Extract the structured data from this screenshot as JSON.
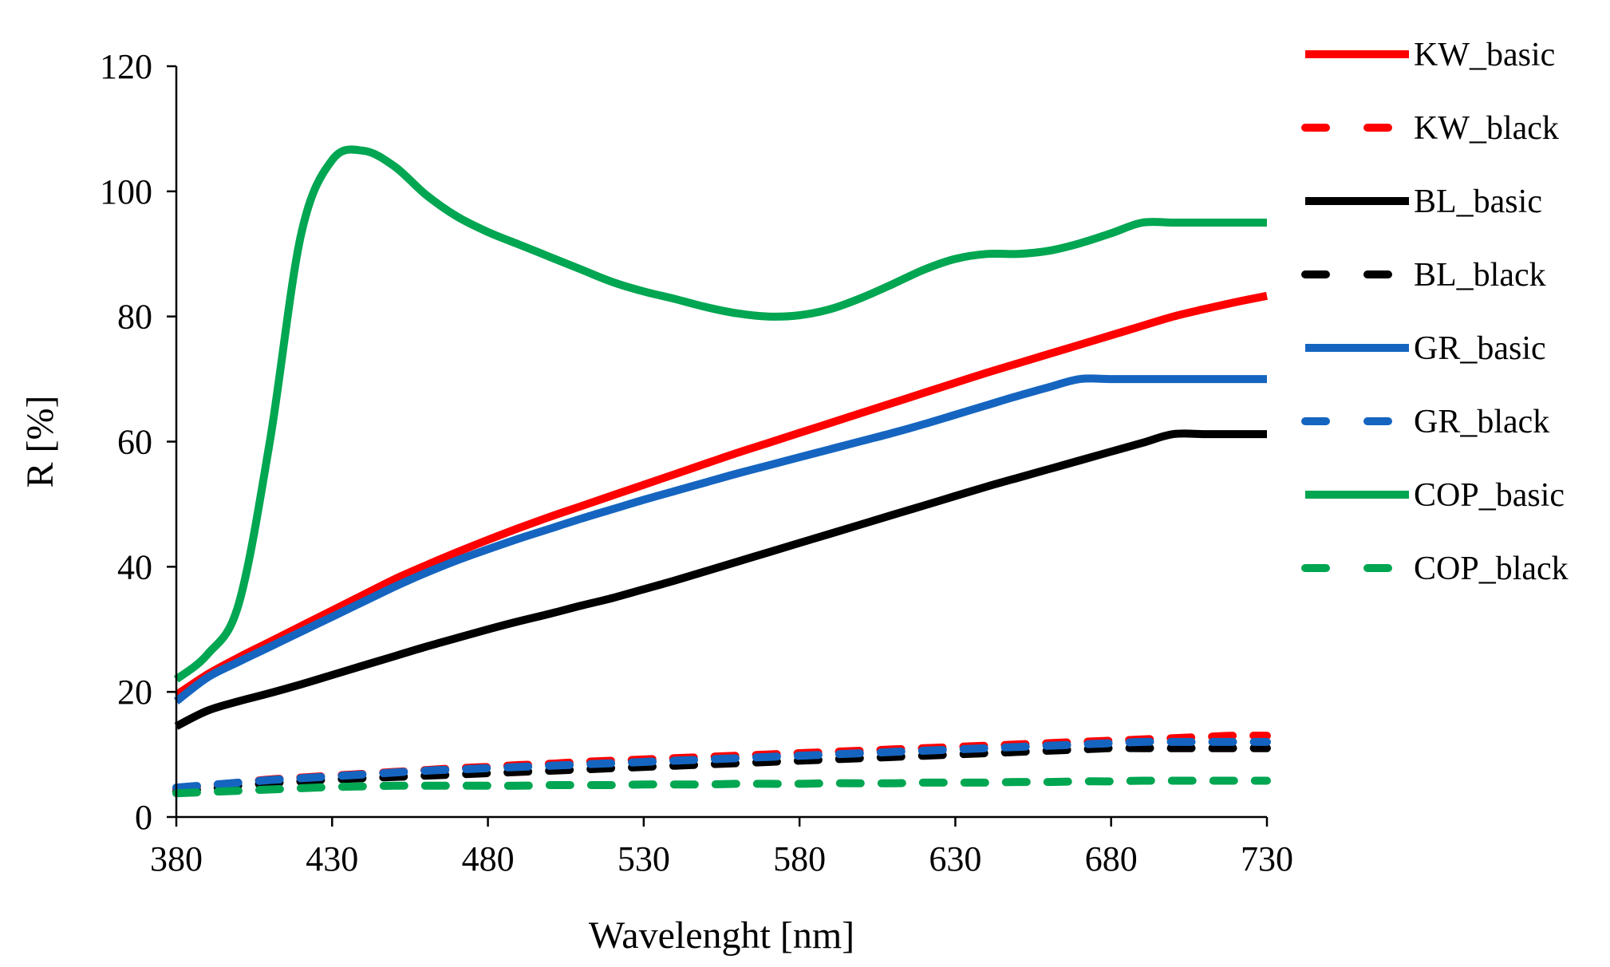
{
  "chart_data": {
    "type": "line",
    "xlabel": "Wavelenght [nm]",
    "ylabel": "R [%]",
    "xlim": [
      380,
      730
    ],
    "ylim": [
      0,
      120
    ],
    "x_ticks": [
      380,
      430,
      480,
      530,
      580,
      630,
      680,
      730
    ],
    "y_ticks": [
      0,
      20,
      40,
      60,
      80,
      100,
      120
    ],
    "grid": false,
    "legend_position": "right",
    "x": [
      380,
      390,
      400,
      410,
      420,
      430,
      440,
      450,
      460,
      470,
      480,
      490,
      500,
      510,
      520,
      530,
      540,
      550,
      560,
      570,
      580,
      590,
      600,
      610,
      620,
      630,
      640,
      650,
      660,
      670,
      680,
      690,
      700,
      710,
      720,
      730
    ],
    "series": [
      {
        "name": "KW_basic",
        "color": "#ff0000",
        "dash": "solid",
        "values": [
          19.5,
          22.8,
          25.5,
          28,
          30.5,
          33,
          35.5,
          38,
          40.2,
          42.3,
          44.3,
          46.2,
          48,
          49.7,
          51.4,
          53.1,
          54.8,
          56.5,
          58.2,
          59.8,
          61.4,
          63,
          64.6,
          66.2,
          67.8,
          69.4,
          71,
          72.5,
          74,
          75.5,
          77,
          78.5,
          80,
          81.2,
          82.3,
          83.3
        ]
      },
      {
        "name": "KW_black",
        "color": "#ff0000",
        "dash": "dashed",
        "values": [
          4.5,
          5,
          5.5,
          6,
          6.3,
          6.6,
          6.9,
          7.2,
          7.5,
          7.8,
          8,
          8.3,
          8.5,
          8.8,
          9,
          9.2,
          9.4,
          9.6,
          9.8,
          10,
          10.2,
          10.4,
          10.6,
          10.8,
          11,
          11.2,
          11.4,
          11.6,
          11.8,
          12,
          12.2,
          12.4,
          12.6,
          12.8,
          13,
          13
        ]
      },
      {
        "name": "BL_basic",
        "color": "#000000",
        "dash": "solid",
        "values": [
          14.5,
          17,
          18.5,
          19.8,
          21.2,
          22.7,
          24.2,
          25.7,
          27.2,
          28.6,
          30,
          31.3,
          32.5,
          33.8,
          35,
          36.4,
          37.8,
          39.3,
          40.8,
          42.3,
          43.8,
          45.3,
          46.8,
          48.3,
          49.8,
          51.3,
          52.8,
          54.2,
          55.6,
          57,
          58.4,
          59.8,
          61.2,
          61.2,
          61.2,
          61.2
        ]
      },
      {
        "name": "BL_black",
        "color": "#000000",
        "dash": "dashed",
        "values": [
          4,
          4.5,
          5,
          5.4,
          5.7,
          6,
          6.2,
          6.4,
          6.6,
          6.8,
          7,
          7.2,
          7.4,
          7.6,
          7.8,
          8,
          8.2,
          8.4,
          8.6,
          8.8,
          9,
          9.2,
          9.4,
          9.6,
          9.8,
          10,
          10.2,
          10.4,
          10.6,
          10.8,
          11,
          11,
          11,
          11,
          11,
          11
        ]
      },
      {
        "name": "GR_basic",
        "color": "#1565c0",
        "dash": "solid",
        "values": [
          18.5,
          22.3,
          24.8,
          27.2,
          29.6,
          32,
          34.4,
          36.8,
          39,
          41,
          42.8,
          44.5,
          46.1,
          47.7,
          49.2,
          50.7,
          52.1,
          53.5,
          54.9,
          56.2,
          57.5,
          58.8,
          60.1,
          61.4,
          62.8,
          64.3,
          65.8,
          67.3,
          68.7,
          70,
          70,
          70,
          70,
          70,
          70,
          70
        ]
      },
      {
        "name": "GR_black",
        "color": "#1565c0",
        "dash": "dashed",
        "values": [
          4.7,
          5.1,
          5.5,
          5.9,
          6.2,
          6.5,
          6.8,
          7.1,
          7.4,
          7.6,
          7.8,
          8,
          8.2,
          8.4,
          8.6,
          8.8,
          9,
          9.2,
          9.4,
          9.6,
          9.8,
          10,
          10.2,
          10.4,
          10.6,
          10.8,
          11,
          11.2,
          11.4,
          11.6,
          11.8,
          12,
          12,
          12,
          12,
          12
        ]
      },
      {
        "name": "COP_basic",
        "color": "#00a651",
        "dash": "solid",
        "values": [
          22,
          26,
          34,
          60,
          93,
          105,
          106.5,
          104,
          99.5,
          96,
          93.5,
          91.5,
          89.5,
          87.5,
          85.5,
          84,
          82.8,
          81.5,
          80.5,
          80,
          80.2,
          81.2,
          83,
          85.2,
          87.5,
          89.2,
          90,
          90,
          90.5,
          91.7,
          93.3,
          95,
          95,
          95,
          95,
          95
        ]
      },
      {
        "name": "COP_black",
        "color": "#00a651",
        "dash": "dashed",
        "values": [
          3.8,
          4,
          4.2,
          4.4,
          4.6,
          4.8,
          4.9,
          5,
          5,
          5,
          5,
          5,
          5.1,
          5.1,
          5.1,
          5.2,
          5.2,
          5.2,
          5.3,
          5.3,
          5.3,
          5.4,
          5.4,
          5.4,
          5.5,
          5.5,
          5.5,
          5.6,
          5.6,
          5.7,
          5.7,
          5.8,
          5.8,
          5.8,
          5.8,
          5.8
        ]
      }
    ]
  }
}
